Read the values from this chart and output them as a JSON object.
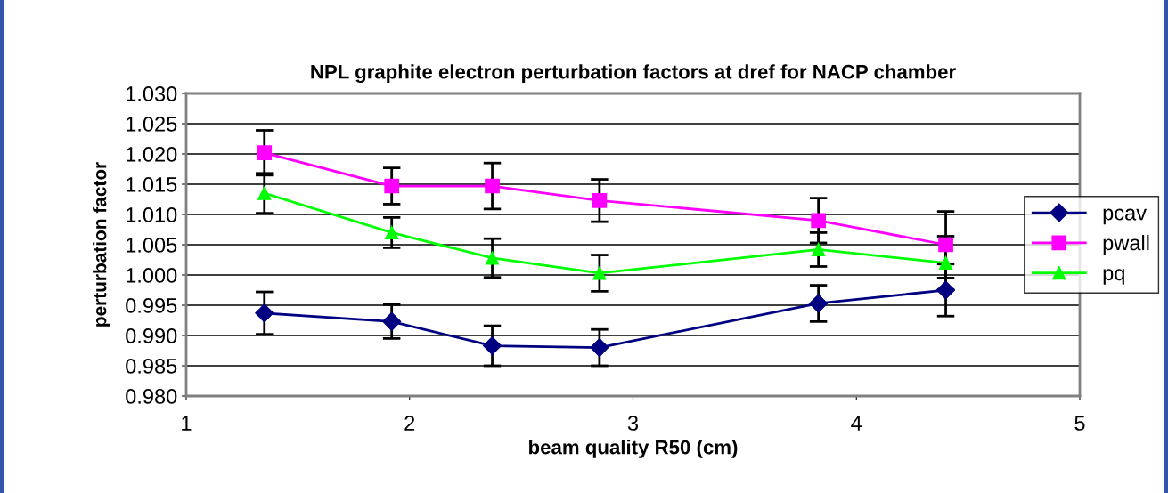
{
  "chart_data": {
    "type": "line",
    "title": "NPL graphite electron perturbation factors at dref for NACP chamber",
    "xlabel": "beam quality R50 (cm)",
    "ylabel": "perturbation factor",
    "x": [
      1.35,
      1.92,
      2.37,
      2.85,
      3.83,
      4.4
    ],
    "series": [
      {
        "name": "pcav",
        "color": "#000080",
        "marker": "diamond",
        "values": [
          0.9937,
          0.9923,
          0.9883,
          0.988,
          0.9953,
          0.9975
        ],
        "errors": [
          0.0035,
          0.0028,
          0.0033,
          0.003,
          0.003,
          0.0043
        ]
      },
      {
        "name": "pwall",
        "color": "#ff00ff",
        "marker": "square",
        "values": [
          1.0202,
          1.0147,
          1.0147,
          1.0123,
          1.009,
          1.005
        ],
        "errors": [
          0.0037,
          0.003,
          0.0038,
          0.0035,
          0.0037,
          0.0055
        ]
      },
      {
        "name": "pq",
        "color": "#00ff00",
        "marker": "triangle",
        "values": [
          1.0135,
          1.007,
          1.0028,
          1.0003,
          1.0042,
          1.002
        ],
        "errors": [
          0.0033,
          0.0025,
          0.0032,
          0.003,
          0.0028,
          0.0044
        ]
      }
    ],
    "xlim": [
      1,
      5
    ],
    "xticks": [
      1,
      2,
      3,
      4,
      5
    ],
    "ylim": [
      0.98,
      1.03
    ],
    "yticks": [
      {
        "value": 0.98,
        "label": "0.980"
      },
      {
        "value": 0.985,
        "label": "0.985"
      },
      {
        "value": 0.99,
        "label": "0.990"
      },
      {
        "value": 0.995,
        "label": "0.995"
      },
      {
        "value": 1.0,
        "label": "1.000"
      },
      {
        "value": 1.005,
        "label": "1.005"
      },
      {
        "value": 1.01,
        "label": "1.010"
      },
      {
        "value": 1.015,
        "label": "1.015"
      },
      {
        "value": 1.02,
        "label": "1.020"
      },
      {
        "value": 1.025,
        "label": "1.025"
      },
      {
        "value": 1.03,
        "label": "1.030"
      }
    ],
    "grid": "y",
    "legend": "right",
    "line_style": "solid"
  }
}
